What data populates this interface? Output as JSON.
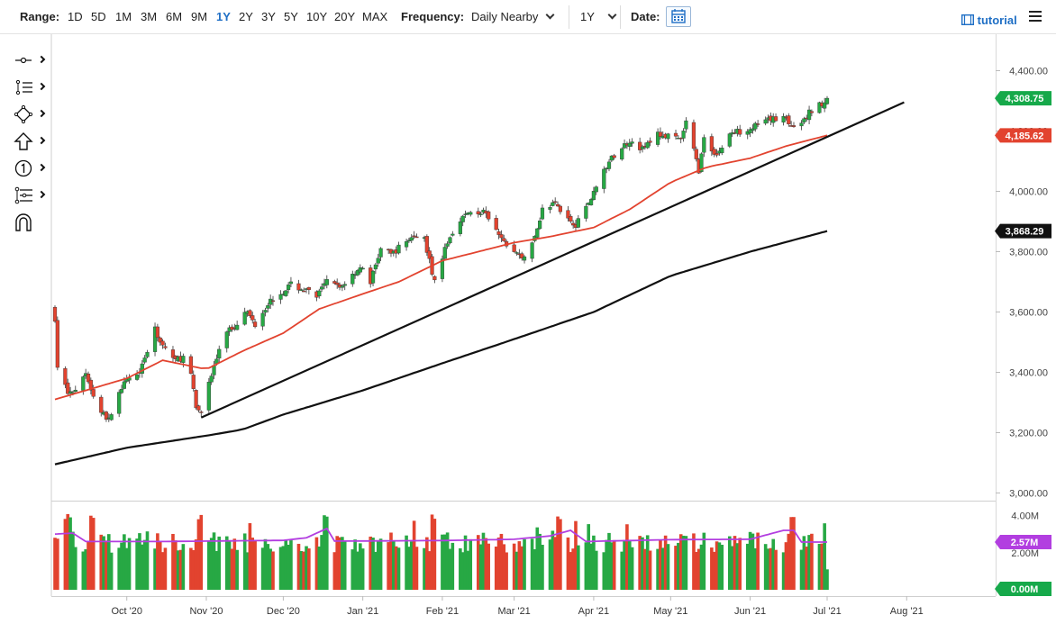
{
  "toolbar": {
    "range_label": "Range:",
    "ranges": [
      "1D",
      "5D",
      "1M",
      "3M",
      "6M",
      "9M",
      "1Y",
      "2Y",
      "3Y",
      "5Y",
      "10Y",
      "20Y",
      "MAX"
    ],
    "active_range": "1Y",
    "frequency_label": "Frequency:",
    "frequency_value": "Daily Nearby",
    "period_value": "1Y",
    "date_label": "Date:",
    "tutorial_label": "tutorial"
  },
  "tools": [
    "crosshair-icon",
    "list-icon",
    "shape-icon",
    "arrow-up-icon",
    "number-marker-icon",
    "settings-branch-icon",
    "magnet-icon"
  ],
  "colors": {
    "up": "#27a844",
    "down": "#e2432f",
    "ma50": "#e2432f",
    "ma200": "#111111",
    "volume_ma": "#b23ee0",
    "last_price_badge": "#16a94a",
    "ma50_badge": "#e2432f",
    "ma200_badge": "#111111"
  },
  "chart_data": {
    "type": "candlestick",
    "price_axis": {
      "ticks": [
        "4,400.00",
        "4,200.00",
        "4,000.00",
        "3,800.00",
        "3,600.00",
        "3,400.00",
        "3,200.00",
        "3,000.00"
      ],
      "range": [
        3000,
        4400
      ]
    },
    "x_axis": {
      "ticks": [
        "Oct '20",
        "Nov '20",
        "Dec '20",
        "Jan '21",
        "Feb '21",
        "Mar '21",
        "Apr '21",
        "May '21",
        "Jun '21",
        "Jul '21",
        "Aug '21"
      ]
    },
    "badges": {
      "last_price": "4,308.75",
      "ma50": "4,185.62",
      "ma200": "3,868.29"
    },
    "volume_axis": {
      "ticks": [
        "4.00M",
        "2.00M"
      ],
      "badge_top": "2.57M",
      "badge_bottom": "0.00M"
    },
    "price_anchors": [
      [
        "2020-09-03",
        3580
      ],
      [
        "2020-09-04",
        3420
      ],
      [
        "2020-09-08",
        3330
      ],
      [
        "2020-09-11",
        3340
      ],
      [
        "2020-09-15",
        3400
      ],
      [
        "2020-09-18",
        3320
      ],
      [
        "2020-09-21",
        3270
      ],
      [
        "2020-09-24",
        3240
      ],
      [
        "2020-09-28",
        3340
      ],
      [
        "2020-10-02",
        3380
      ],
      [
        "2020-10-06",
        3410
      ],
      [
        "2020-10-09",
        3470
      ],
      [
        "2020-10-12",
        3540
      ],
      [
        "2020-10-15",
        3490
      ],
      [
        "2020-10-20",
        3440
      ],
      [
        "2020-10-23",
        3450
      ],
      [
        "2020-10-26",
        3390
      ],
      [
        "2020-10-28",
        3280
      ],
      [
        "2020-10-30",
        3270
      ],
      [
        "2020-11-04",
        3420
      ],
      [
        "2020-11-09",
        3540
      ],
      [
        "2020-11-12",
        3550
      ],
      [
        "2020-11-16",
        3610
      ],
      [
        "2020-11-20",
        3560
      ],
      [
        "2020-11-25",
        3630
      ],
      [
        "2020-12-04",
        3690
      ],
      [
        "2020-12-10",
        3670
      ],
      [
        "2020-12-14",
        3650
      ],
      [
        "2020-12-18",
        3700
      ],
      [
        "2020-12-23",
        3680
      ],
      [
        "2020-12-31",
        3750
      ],
      [
        "2021-01-04",
        3700
      ],
      [
        "2021-01-08",
        3810
      ],
      [
        "2021-01-12",
        3790
      ],
      [
        "2021-01-20",
        3850
      ],
      [
        "2021-01-25",
        3840
      ],
      [
        "2021-01-29",
        3700
      ],
      [
        "2021-02-03",
        3830
      ],
      [
        "2021-02-08",
        3910
      ],
      [
        "2021-02-12",
        3930
      ],
      [
        "2021-02-17",
        3930
      ],
      [
        "2021-02-25",
        3830
      ],
      [
        "2021-03-04",
        3780
      ],
      [
        "2021-03-08",
        3820
      ],
      [
        "2021-03-12",
        3940
      ],
      [
        "2021-03-17",
        3960
      ],
      [
        "2021-03-22",
        3910
      ],
      [
        "2021-03-25",
        3890
      ],
      [
        "2021-03-31",
        3980
      ],
      [
        "2021-04-05",
        4070
      ],
      [
        "2021-04-09",
        4120
      ],
      [
        "2021-04-15",
        4170
      ],
      [
        "2021-04-20",
        4140
      ],
      [
        "2021-04-26",
        4190
      ],
      [
        "2021-04-30",
        4180
      ],
      [
        "2021-05-05",
        4170
      ],
      [
        "2021-05-07",
        4230
      ],
      [
        "2021-05-12",
        4070
      ],
      [
        "2021-05-14",
        4170
      ],
      [
        "2021-05-19",
        4120
      ],
      [
        "2021-05-24",
        4190
      ],
      [
        "2021-05-28",
        4200
      ],
      [
        "2021-06-04",
        4220
      ],
      [
        "2021-06-10",
        4240
      ],
      [
        "2021-06-15",
        4250
      ],
      [
        "2021-06-17",
        4210
      ],
      [
        "2021-06-21",
        4220
      ],
      [
        "2021-06-24",
        4260
      ],
      [
        "2021-06-30",
        4300
      ],
      [
        "2021-07-01",
        4308.75
      ]
    ],
    "ma50_anchors": [
      [
        "2020-09-03",
        3310
      ],
      [
        "2020-10-01",
        3380
      ],
      [
        "2020-10-15",
        3440
      ],
      [
        "2020-11-01",
        3410
      ],
      [
        "2020-11-15",
        3470
      ],
      [
        "2020-12-01",
        3530
      ],
      [
        "2020-12-15",
        3610
      ],
      [
        "2021-01-01",
        3660
      ],
      [
        "2021-01-15",
        3700
      ],
      [
        "2021-02-01",
        3770
      ],
      [
        "2021-02-15",
        3800
      ],
      [
        "2021-03-01",
        3830
      ],
      [
        "2021-03-15",
        3850
      ],
      [
        "2021-04-01",
        3880
      ],
      [
        "2021-04-15",
        3940
      ],
      [
        "2021-05-01",
        4030
      ],
      [
        "2021-05-15",
        4080
      ],
      [
        "2021-06-01",
        4110
      ],
      [
        "2021-06-15",
        4150
      ],
      [
        "2021-07-01",
        4185.62
      ]
    ],
    "ma200_anchors": [
      [
        "2020-09-03",
        3095
      ],
      [
        "2020-10-01",
        3150
      ],
      [
        "2020-11-01",
        3190
      ],
      [
        "2020-11-15",
        3210
      ],
      [
        "2020-12-01",
        3260
      ],
      [
        "2021-01-01",
        3340
      ],
      [
        "2021-02-01",
        3430
      ],
      [
        "2021-03-01",
        3510
      ],
      [
        "2021-04-01",
        3600
      ],
      [
        "2021-05-01",
        3720
      ],
      [
        "2021-06-01",
        3800
      ],
      [
        "2021-07-01",
        3868.29
      ]
    ],
    "trendline": {
      "start": [
        "2020-10-30",
        3250
      ],
      "end": [
        "2021-07-31",
        4295
      ]
    },
    "volume_ma_anchors": [
      [
        "2020-09-03",
        3.0
      ],
      [
        "2020-09-10",
        3.05
      ],
      [
        "2020-09-15",
        2.6
      ],
      [
        "2020-10-15",
        2.6
      ],
      [
        "2020-11-01",
        2.62
      ],
      [
        "2020-12-01",
        2.66
      ],
      [
        "2020-12-10",
        2.8
      ],
      [
        "2020-12-18",
        3.3
      ],
      [
        "2020-12-21",
        2.62
      ],
      [
        "2021-02-01",
        2.65
      ],
      [
        "2021-03-01",
        2.72
      ],
      [
        "2021-03-15",
        2.9
      ],
      [
        "2021-03-23",
        3.2
      ],
      [
        "2021-03-29",
        2.6
      ],
      [
        "2021-05-01",
        2.7
      ],
      [
        "2021-06-01",
        2.72
      ],
      [
        "2021-06-14",
        3.2
      ],
      [
        "2021-06-18",
        3.2
      ],
      [
        "2021-06-21",
        2.57
      ],
      [
        "2021-06-30",
        2.57
      ]
    ]
  }
}
